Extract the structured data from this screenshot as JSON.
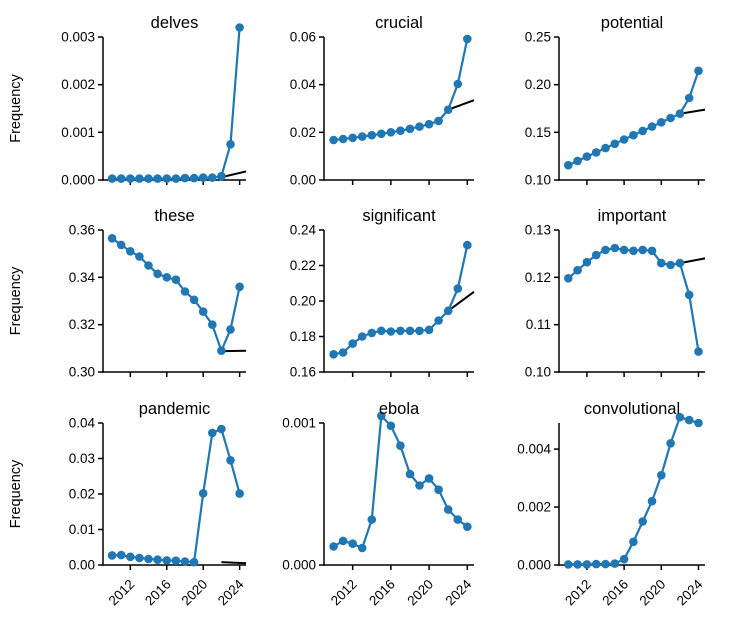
{
  "chart_data": {
    "layout": {
      "ylabel": "Frequency",
      "grid": false,
      "legend": "none",
      "x_years": [
        2010,
        2011,
        2012,
        2013,
        2014,
        2015,
        2016,
        2017,
        2018,
        2019,
        2020,
        2021,
        2022,
        2023,
        2024
      ],
      "xlim": [
        2009.0,
        2024.7
      ],
      "x_ticks": [
        2012,
        2016,
        2020,
        2024
      ],
      "x_tick_labels": [
        "2012",
        "2016",
        "2020",
        "2024"
      ],
      "line_color": "#1f77b4",
      "trend_color": "#000000",
      "axis_color": "#000000",
      "text_color": "#000000"
    },
    "charts": [
      {
        "type": "line",
        "title": "delves",
        "y": [
          3e-05,
          3e-05,
          3e-05,
          3e-05,
          3e-05,
          3e-05,
          3e-05,
          3e-05,
          4e-05,
          4e-05,
          5e-05,
          5e-05,
          8e-05,
          0.00075,
          0.0032
        ],
        "y_ticks": [
          0.0,
          0.001,
          0.002,
          0.003
        ],
        "y_decimals": 3,
        "ylim": [
          0.0,
          0.003
        ],
        "trend": {
          "x": [
            2021.8,
            2024.7
          ],
          "y": [
            5e-05,
            0.00018
          ]
        }
      },
      {
        "type": "line",
        "title": "crucial",
        "y": [
          0.0168,
          0.0172,
          0.0177,
          0.0182,
          0.0188,
          0.0194,
          0.02,
          0.0207,
          0.0215,
          0.0224,
          0.0234,
          0.0248,
          0.0295,
          0.0403,
          0.0592
        ],
        "y_ticks": [
          0.0,
          0.02,
          0.04,
          0.06
        ],
        "y_decimals": 2,
        "ylim": [
          0.0,
          0.06
        ],
        "trend": {
          "x": [
            2022,
            2024.7
          ],
          "y": [
            0.0295,
            0.0335
          ]
        }
      },
      {
        "type": "line",
        "title": "potential",
        "y": [
          0.1155,
          0.12,
          0.1245,
          0.129,
          0.1335,
          0.138,
          0.1425,
          0.147,
          0.1515,
          0.156,
          0.1605,
          0.165,
          0.1695,
          0.186,
          0.2145
        ],
        "y_ticks": [
          0.1,
          0.15,
          0.2,
          0.25
        ],
        "y_decimals": 2,
        "ylim": [
          0.1,
          0.25
        ],
        "trend": {
          "x": [
            2022,
            2024.7
          ],
          "y": [
            0.1695,
            0.1738
          ]
        }
      },
      {
        "type": "line",
        "title": "these",
        "y": [
          0.3565,
          0.3537,
          0.351,
          0.3488,
          0.345,
          0.3415,
          0.34,
          0.339,
          0.334,
          0.3305,
          0.3255,
          0.32,
          0.309,
          0.318,
          0.336
        ],
        "y_ticks": [
          0.3,
          0.32,
          0.34,
          0.36
        ],
        "y_decimals": 2,
        "ylim": [
          0.3,
          0.36
        ],
        "trend": {
          "x": [
            2022.3,
            2024.7
          ],
          "y": [
            0.3088,
            0.309
          ]
        }
      },
      {
        "type": "line",
        "title": "significant",
        "y": [
          0.17,
          0.171,
          0.176,
          0.18,
          0.182,
          0.1832,
          0.1828,
          0.1832,
          0.1832,
          0.1832,
          0.1838,
          0.189,
          0.1945,
          0.207,
          0.2315
        ],
        "y_ticks": [
          0.16,
          0.18,
          0.2,
          0.22,
          0.24
        ],
        "y_decimals": 2,
        "ylim": [
          0.16,
          0.24
        ],
        "trend": {
          "x": [
            2022,
            2024.7
          ],
          "y": [
            0.1945,
            0.2052
          ]
        }
      },
      {
        "type": "line",
        "title": "important",
        "y": [
          0.1198,
          0.1215,
          0.1232,
          0.1247,
          0.1258,
          0.1262,
          0.1258,
          0.1256,
          0.1258,
          0.1256,
          0.123,
          0.1226,
          0.123,
          0.1163,
          0.1043
        ],
        "y_ticks": [
          0.1,
          0.11,
          0.12,
          0.13
        ],
        "y_decimals": 2,
        "ylim": [
          0.1,
          0.13
        ],
        "trend": {
          "x": [
            2022,
            2024.7
          ],
          "y": [
            0.123,
            0.124
          ]
        }
      },
      {
        "type": "line",
        "title": "pandemic",
        "y": [
          0.0027,
          0.0028,
          0.0023,
          0.002,
          0.0017,
          0.0015,
          0.0013,
          0.0012,
          0.001,
          0.0008,
          0.0202,
          0.0372,
          0.0383,
          0.0295,
          0.0201
        ],
        "y_ticks": [
          0.0,
          0.01,
          0.02,
          0.03,
          0.04
        ],
        "y_decimals": 2,
        "ylim": [
          0.0,
          0.04
        ],
        "trend": {
          "x": [
            2022,
            2024.7
          ],
          "y": [
            0.0008,
            0.0005
          ]
        }
      },
      {
        "type": "line",
        "title": "ebola",
        "y": [
          0.00013,
          0.00017,
          0.00015,
          0.00012,
          0.00032,
          0.00105,
          0.00098,
          0.00084,
          0.00064,
          0.00056,
          0.00061,
          0.00053,
          0.00039,
          0.00032,
          0.00027
        ],
        "y_ticks": [
          0.0,
          0.001
        ],
        "y_decimals": 3,
        "ylim": [
          0.0,
          0.001
        ],
        "trend": null
      },
      {
        "type": "line",
        "title": "convolutional",
        "y": [
          2e-05,
          2e-05,
          2e-05,
          3e-05,
          3e-05,
          5e-05,
          0.0002,
          0.0008,
          0.0015,
          0.0022,
          0.0031,
          0.0042,
          0.0051,
          0.005,
          0.0049
        ],
        "y_ticks": [
          0.0,
          0.002,
          0.004
        ],
        "y_decimals": 3,
        "ylim": [
          0.0,
          0.0049
        ],
        "trend": null
      }
    ]
  }
}
